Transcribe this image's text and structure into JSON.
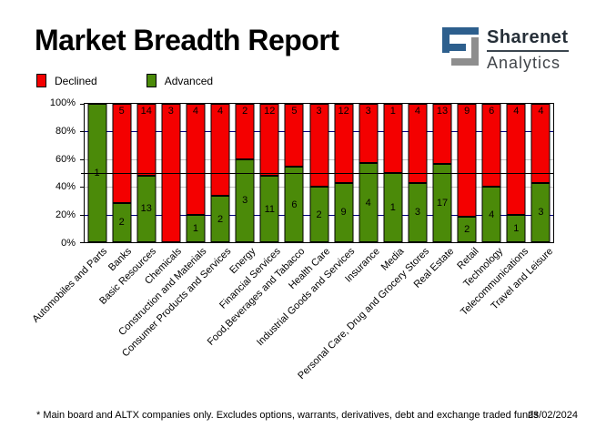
{
  "header": {
    "title": "Market Breadth Report",
    "logo": {
      "name": "Sharenet",
      "sub": "Analytics",
      "blue": "#2d5f8d",
      "gray": "#8e8e8e"
    }
  },
  "legend": {
    "items": [
      {
        "label": "Declined",
        "color": "#f40000"
      },
      {
        "label": "Advanced",
        "color": "#4b8a09"
      }
    ]
  },
  "chart_data": {
    "type": "bar",
    "stacked": true,
    "percent_mode": true,
    "categories": [
      "Automobiles and Parts",
      "Banks",
      "Basic Resources",
      "Chemicals",
      "Construction and Materials",
      "Consumer Products and Services",
      "Energy",
      "Financial Services",
      "Food,Beverages and Tabacco",
      "Health Care",
      "Industrial Goods and Services",
      "Insurance",
      "Media",
      "Personal Care, Drug and Grocery Stores",
      "Real Estate",
      "Retail",
      "Technology",
      "Telecommunications",
      "Travel and Leisure"
    ],
    "series": [
      {
        "name": "Declined",
        "color": "#f40000",
        "values": [
          0,
          5,
          14,
          3,
          4,
          4,
          2,
          12,
          5,
          3,
          12,
          3,
          1,
          4,
          13,
          9,
          6,
          4,
          4
        ]
      },
      {
        "name": "Advanced",
        "color": "#4b8a09",
        "values": [
          1,
          2,
          13,
          0,
          1,
          2,
          3,
          11,
          6,
          2,
          9,
          4,
          1,
          3,
          17,
          2,
          4,
          1,
          3
        ]
      }
    ],
    "ylim": [
      0,
      100
    ],
    "y_ticks": [
      {
        "pct": 0,
        "label": "0%"
      },
      {
        "pct": 20,
        "label": "20%"
      },
      {
        "pct": 40,
        "label": "40%"
      },
      {
        "pct": 60,
        "label": "60%"
      },
      {
        "pct": 80,
        "label": "80%"
      },
      {
        "pct": 100,
        "label": "100%"
      }
    ],
    "gridlines": [
      {
        "pct": 20,
        "color": "#000080"
      },
      {
        "pct": 40,
        "color": "#c0c0c0"
      },
      {
        "pct": 60,
        "color": "#c0c0c0"
      },
      {
        "pct": 80,
        "color": "#000080"
      }
    ],
    "reference_line": {
      "pct": 50,
      "color": "#000000"
    },
    "legend_position": "top-left",
    "grid": true
  },
  "footer": {
    "note": "* Main board and ALTX companies only. Excludes options, warrants, derivatives, debt and exchange traded funds",
    "date": "23/02/2024"
  }
}
